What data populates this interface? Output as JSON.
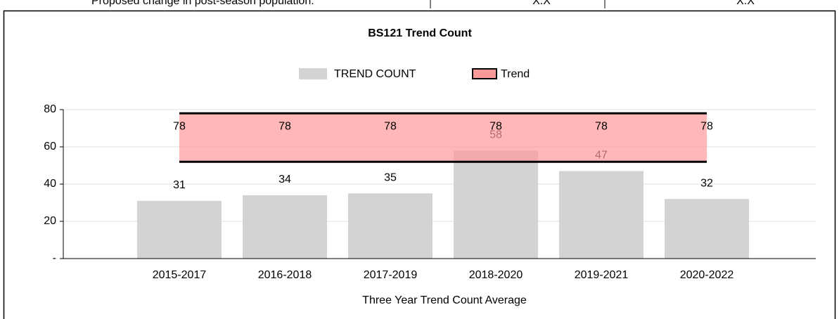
{
  "header": {
    "label": "Proposed change in post-season population:",
    "cells": [
      "X.X",
      "X.X"
    ]
  },
  "chart_data": {
    "type": "bar",
    "title": "BS121 Trend Count",
    "x_label": "Three Year Trend Count Average",
    "categories": [
      "2015-2017",
      "2016-2018",
      "2017-2019",
      "2018-2020",
      "2019-2021",
      "2020-2022"
    ],
    "series": [
      {
        "name": "TREND COUNT",
        "color": "#d3d3d3",
        "values": [
          31,
          34,
          35,
          58,
          47,
          32
        ]
      },
      {
        "name": "Trend",
        "color": "#ff9999",
        "values": [
          78,
          78,
          78,
          78,
          78,
          78
        ],
        "low": [
          52,
          52,
          52,
          52,
          52,
          52
        ]
      }
    ],
    "ylim": [
      0,
      80
    ],
    "yticks": [
      {
        "value": 0,
        "label": "-"
      },
      20,
      40,
      60,
      80
    ],
    "grid": true,
    "legend": "top"
  }
}
